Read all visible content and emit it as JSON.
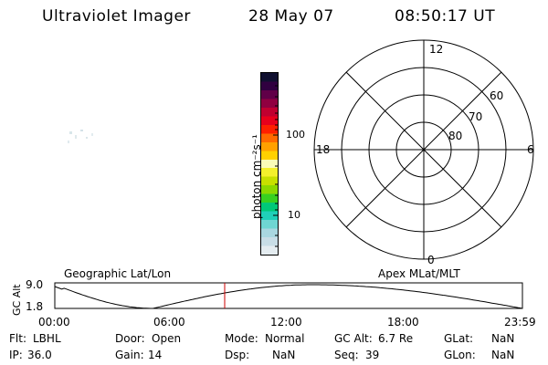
{
  "header": {
    "title": "Ultraviolet Imager",
    "date": "28 May 07",
    "time": "08:50:17 UT"
  },
  "colorbar": {
    "label": "photon cm⁻²s⁻¹",
    "tick_labels": [
      "100",
      "10"
    ],
    "colors": [
      "#e4ecf0",
      "#c8dde6",
      "#a9d7e0",
      "#6fd6d2",
      "#20d0b8",
      "#00c878",
      "#38d020",
      "#8cd800",
      "#c8e000",
      "#f4f02c",
      "#fafcb8",
      "#ffd100",
      "#ffa000",
      "#ff6a00",
      "#ff2000",
      "#e8001c",
      "#c00030",
      "#900040",
      "#600048",
      "#300040",
      "#101030"
    ]
  },
  "polar_plot": {
    "mlt_labels": {
      "top": "12",
      "bottom": "0",
      "left": "18",
      "right": "6"
    },
    "lat_labels": [
      "60",
      "70",
      "80"
    ]
  },
  "timeline": {
    "left_label": "Geographic Lat/Lon",
    "right_label": "Apex MLat/MLT",
    "y_axis_title": "GC Alt",
    "y_max_label": "9.0",
    "y_min_label": "1.8",
    "x_tick_labels": [
      "00:00",
      "06:00",
      "12:00",
      "18:00",
      "23:59"
    ],
    "marker_color": "#cc0000"
  },
  "status": {
    "row1": [
      {
        "key": "Flt:",
        "value": "LBHL"
      },
      {
        "key": "Door:",
        "value": "Open"
      },
      {
        "key": "Mode:",
        "value": "Normal"
      },
      {
        "key": "GC Alt:",
        "value": "6.7 Re"
      },
      {
        "key": "GLat:",
        "value": "NaN"
      }
    ],
    "row2": [
      {
        "key": "IP:",
        "value": "36.0"
      },
      {
        "key": "Gain:",
        "value": "14"
      },
      {
        "key": "Dsp:",
        "value": "NaN"
      },
      {
        "key": "Seq:",
        "value": "39"
      },
      {
        "key": "GLon:",
        "value": "NaN"
      }
    ]
  }
}
